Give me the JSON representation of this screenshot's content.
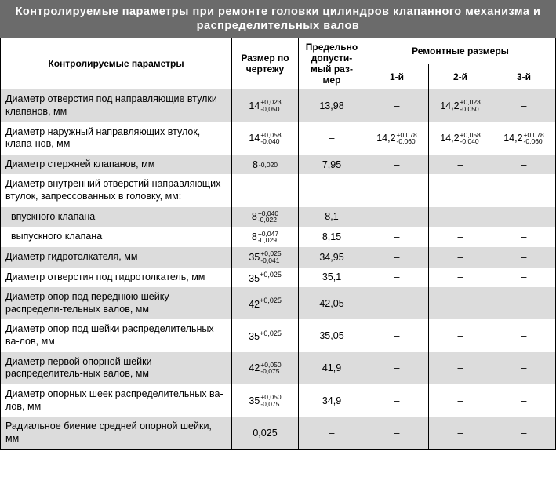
{
  "title": "Контролируемые параметры при ремонте головки цилиндров клапанного механизма и распределительных валов",
  "headers": {
    "param": "Контролируемые параметры",
    "size": "Размер по чертежу",
    "limit": "Предельно допусти-мый раз-мер",
    "repair_group": "Ремонтные размеры",
    "rep1": "1-й",
    "rep2": "2-й",
    "rep3": "3-й"
  },
  "dash": "–",
  "rows": [
    {
      "shade": true,
      "param": "Диаметр отверстия под направляющие втулки клапанов, мм",
      "size": {
        "base": "14",
        "up": "+0,023",
        "lo": "-0,050"
      },
      "limit": "13,98",
      "r1": "–",
      "r2": {
        "base": "14,2",
        "up": "+0,023",
        "lo": "-0,050"
      },
      "r3": "–"
    },
    {
      "shade": false,
      "param": "Диаметр наружный направляющих втулок, клапа-нов, мм",
      "size": {
        "base": "14",
        "up": "+0,058",
        "lo": "-0,040"
      },
      "limit": "–",
      "r1": {
        "base": "14,2",
        "up": "+0,078",
        "lo": "-0,060"
      },
      "r2": {
        "base": "14,2",
        "up": "+0,058",
        "lo": "-0,040"
      },
      "r3": {
        "base": "14,2",
        "up": "+0,078",
        "lo": "-0,060"
      }
    },
    {
      "shade": true,
      "param": "Диаметр стержней клапанов, мм",
      "size": {
        "base": "8",
        "up": "",
        "lo": "-0,020"
      },
      "limit": "7,95",
      "r1": "–",
      "r2": "–",
      "r3": "–"
    },
    {
      "shade": false,
      "param": "Диаметр внутренний отверстий направляющих втулок, запрессованных в головку, мм:",
      "size": "",
      "limit": "",
      "r1": "",
      "r2": "",
      "r3": ""
    },
    {
      "shade": true,
      "param": "  впускного клапана",
      "size": {
        "base": "8",
        "up": "+0,040",
        "lo": "-0,022"
      },
      "limit": "8,1",
      "r1": "–",
      "r2": "–",
      "r3": "–"
    },
    {
      "shade": false,
      "param": "  выпускного клапана",
      "size": {
        "base": "8",
        "up": "+0,047",
        "lo": "-0,029"
      },
      "limit": "8,15",
      "r1": "–",
      "r2": "–",
      "r3": "–"
    },
    {
      "shade": true,
      "param": "Диаметр гидротолкателя, мм",
      "size": {
        "base": "35",
        "up": "+0,025",
        "lo": "-0,041"
      },
      "limit": "34,95",
      "r1": "–",
      "r2": "–",
      "r3": "–"
    },
    {
      "shade": false,
      "param": "Диаметр отверстия под гидротолкатель, мм",
      "size": {
        "base": "35 ",
        "sup": "+0,025"
      },
      "limit": "35,1",
      "r1": "–",
      "r2": "–",
      "r3": "–"
    },
    {
      "shade": true,
      "param": "Диаметр опор под переднюю шейку распредели-тельных валов, мм",
      "size": {
        "base": "42 ",
        "sup": "+0,025"
      },
      "limit": "42,05",
      "r1": "–",
      "r2": "–",
      "r3": "–"
    },
    {
      "shade": false,
      "param": "Диаметр опор под шейки распределительных ва-лов, мм",
      "size": {
        "base": "35 ",
        "sup": "+0,025"
      },
      "limit": "35,05",
      "r1": "–",
      "r2": "–",
      "r3": "–"
    },
    {
      "shade": true,
      "param": "Диаметр первой опорной шейки распределитель-ных валов, мм",
      "size": {
        "base": "42",
        "up": "+0,050",
        "lo": "-0,075"
      },
      "limit": "41,9",
      "r1": "–",
      "r2": "–",
      "r3": "–"
    },
    {
      "shade": false,
      "param": "Диаметр опорных шеек распределительных ва-лов, мм",
      "size": {
        "base": "35",
        "up": "+0,050",
        "lo": "-0,075"
      },
      "limit": "34,9",
      "r1": "–",
      "r2": "–",
      "r3": "–"
    },
    {
      "shade": true,
      "param": "Радиальное биение средней опорной шейки, мм",
      "size": "0,025",
      "limit": "–",
      "r1": "–",
      "r2": "–",
      "r3": "–"
    }
  ],
  "style": {
    "title_bg": "#6b6b6b",
    "title_color": "#ffffff",
    "shade_bg": "#dcdcdc",
    "border_color": "#000000",
    "font_family": "Arial, sans-serif",
    "base_fontsize": 12
  }
}
